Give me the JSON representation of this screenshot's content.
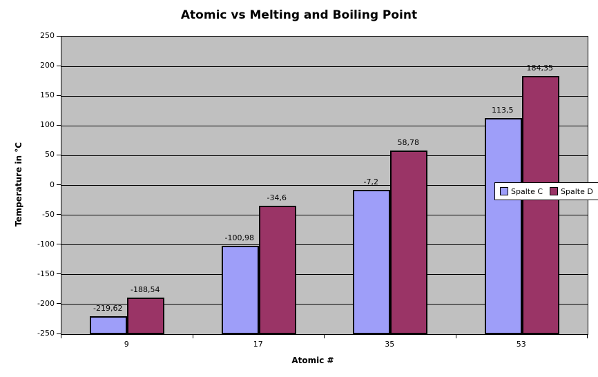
{
  "title": "Atomic vs Melting and Boiling Point",
  "chart_data": {
    "type": "bar",
    "title": "Atomic vs Melting and Boiling Point",
    "xlabel": "Atomic #",
    "ylabel": "Temperature in °C",
    "categories": [
      "9",
      "17",
      "35",
      "53"
    ],
    "series": [
      {
        "name": "Spalte C",
        "color": "#9e9ef9",
        "values": [
          -219.62,
          -100.98,
          -7.2,
          113.5
        ],
        "labels": [
          "-219,62",
          "-100,98",
          "-7,2",
          "113,5"
        ]
      },
      {
        "name": "Spalte D",
        "color": "#9a3466",
        "values": [
          -188.54,
          -34.6,
          58.78,
          184.35
        ],
        "labels": [
          "-188,54",
          "-34,6",
          "58,78",
          "184,35"
        ]
      }
    ],
    "ylim": [
      -250,
      250
    ],
    "ytick_step": 50,
    "ytick_labels": [
      "250",
      "200",
      "150",
      "100",
      "50",
      "0",
      "-50",
      "-100",
      "-150",
      "-200",
      "-250"
    ],
    "baseline": -250,
    "grid": true,
    "legend_position": "middle-right",
    "plot_background": "#c0c0c0",
    "grid_color": "#000000",
    "page_background": "#ffffff"
  }
}
